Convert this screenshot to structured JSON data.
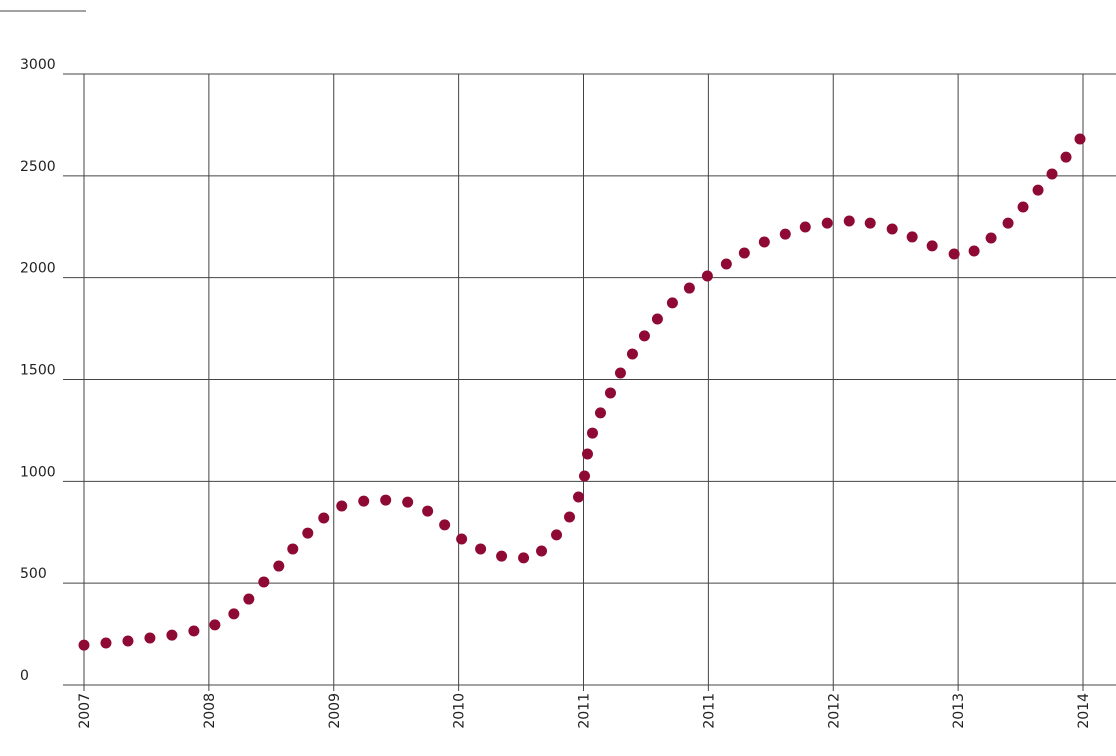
{
  "chart_data": {
    "type": "scatter",
    "color": "#8e0a35",
    "grid": true,
    "xlim": [
      0,
      8
    ],
    "ylim": [
      0,
      3000
    ],
    "yticks": [
      0,
      500,
      1000,
      1500,
      2000,
      2500,
      3000
    ],
    "xticks": [
      {
        "value": 0,
        "label": "2007"
      },
      {
        "value": 1,
        "label": "2008"
      },
      {
        "value": 2,
        "label": "2009"
      },
      {
        "value": 3,
        "label": "2010"
      },
      {
        "value": 4,
        "label": "2011"
      },
      {
        "value": 5,
        "label": "2011"
      },
      {
        "value": 6,
        "label": "2012"
      },
      {
        "value": 7,
        "label": "2013"
      },
      {
        "value": 8,
        "label": "2014"
      }
    ],
    "x": [
      0,
      0.176,
      0.352,
      0.528,
      0.704,
      0.88,
      1.048,
      1.2,
      1.32,
      1.44,
      1.56,
      1.672,
      1.792,
      1.92,
      2.064,
      2.24,
      2.416,
      2.592,
      2.752,
      2.888,
      3.024,
      3.176,
      3.344,
      3.52,
      3.664,
      3.784,
      3.888,
      3.96,
      4.008,
      4.032,
      4.072,
      4.136,
      4.216,
      4.296,
      4.392,
      4.488,
      4.592,
      4.712,
      4.848,
      4.992,
      5.144,
      5.288,
      5.448,
      5.616,
      5.776,
      5.952,
      6.128,
      6.296,
      6.472,
      6.632,
      6.792,
      6.968,
      7.128,
      7.264,
      7.4,
      7.52,
      7.64,
      7.752,
      7.864,
      7.976
    ],
    "values": [
      196,
      206,
      216,
      231,
      245,
      265,
      295,
      349,
      422,
      506,
      584,
      668,
      746,
      820,
      879,
      903,
      908,
      898,
      854,
      786,
      717,
      668,
      633,
      624,
      658,
      737,
      825,
      923,
      1026,
      1134,
      1237,
      1336,
      1434,
      1532,
      1625,
      1714,
      1797,
      1876,
      1949,
      2008,
      2067,
      2121,
      2175,
      2214,
      2249,
      2268,
      2278,
      2268,
      2239,
      2200,
      2156,
      2116,
      2131,
      2195,
      2268,
      2347,
      2430,
      2509,
      2592,
      2681
    ]
  }
}
